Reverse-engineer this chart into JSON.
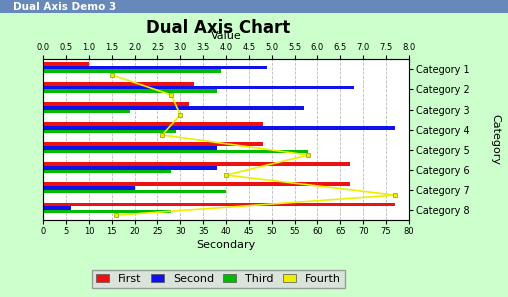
{
  "title": "Dual Axis Chart",
  "title_x": "Value",
  "title_x2": "Secondary",
  "title_y": "Category",
  "categories": [
    "Category 1",
    "Category 2",
    "Category 3",
    "Category 4",
    "Category 5",
    "Category 6",
    "Category 7",
    "Category 8"
  ],
  "first": [
    10,
    33,
    32,
    48,
    48,
    67,
    67,
    77
  ],
  "second": [
    49,
    68,
    57,
    77,
    38,
    38,
    20,
    6
  ],
  "third": [
    39,
    38,
    19,
    29,
    58,
    28,
    40,
    28
  ],
  "fourth": [
    15,
    28,
    30,
    26,
    58,
    40,
    77,
    16
  ],
  "first_color": "#EE1111",
  "second_color": "#1111EE",
  "third_color": "#00BB00",
  "fourth_color": "#EEEE00",
  "bg_outer": "#CCFFCC",
  "bg_plot": "#FFFFFF",
  "grid_color": "#BBBBBB",
  "primary_xlim": [
    0.0,
    8.0
  ],
  "secondary_xlim": [
    0,
    80
  ],
  "primary_ticks": [
    0.0,
    0.5,
    1.0,
    1.5,
    2.0,
    2.5,
    3.0,
    3.5,
    4.0,
    4.5,
    5.0,
    5.5,
    6.0,
    6.5,
    7.0,
    7.5,
    8.0
  ],
  "secondary_ticks": [
    0,
    5,
    10,
    15,
    20,
    25,
    30,
    35,
    40,
    45,
    50,
    55,
    60,
    65,
    70,
    75,
    80
  ],
  "bar_height": 0.18,
  "legend_labels": [
    "First",
    "Second",
    "Third",
    "Fourth"
  ],
  "title_bar_color": "#6688BB",
  "title_text_color": "#FFFFFF",
  "window_title": "Dual Axis Demo 3"
}
